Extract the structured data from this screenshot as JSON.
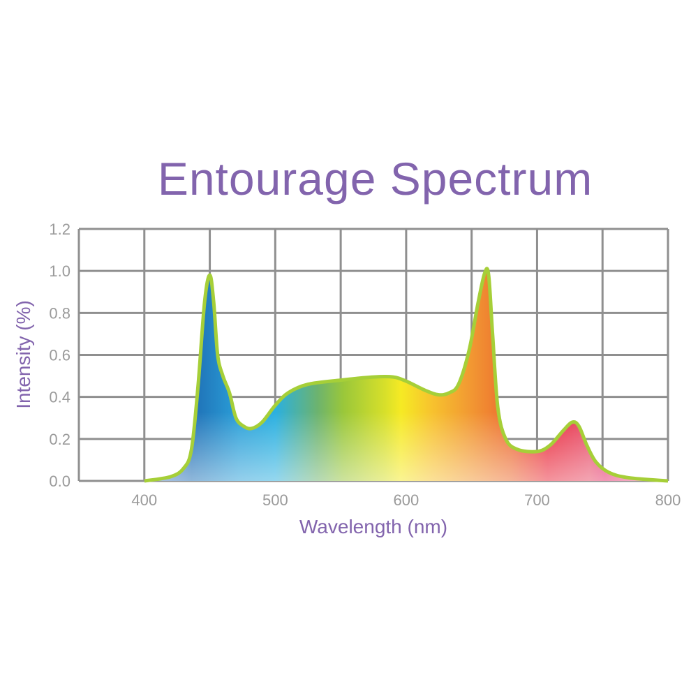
{
  "chart_data": {
    "type": "area",
    "title": "Entourage Spectrum",
    "xlabel": "Wavelength (nm)",
    "ylabel": "Intensity (%)",
    "xlim": [
      350,
      800
    ],
    "ylim": [
      0,
      1.2
    ],
    "grid": true,
    "x_grid_step": 50,
    "y_grid_step": 0.2,
    "x_ticks": [
      400,
      500,
      600,
      700,
      800
    ],
    "x_tick_labels": [
      "400",
      "500",
      "600",
      "700",
      "800"
    ],
    "y_ticks": [
      0,
      0.2,
      0.4,
      0.6,
      0.8,
      1.0,
      1.2
    ],
    "y_tick_labels": [
      "0.0",
      "0.2",
      "0.4",
      "0.6",
      "0.8",
      "1.0",
      "1.2"
    ],
    "series": [
      {
        "name": "Entourage",
        "x": [
          400,
          420,
          430,
          436,
          441,
          446,
          450,
          453,
          456,
          460,
          465,
          470,
          476,
          482,
          490,
          500,
          510,
          525,
          550,
          575,
          590,
          600,
          615,
          625,
          633,
          640,
          648,
          655,
          660,
          663,
          666,
          670,
          676,
          685,
          700,
          710,
          720,
          727,
          732,
          738,
          745,
          755,
          770,
          800
        ],
        "y": [
          0.0,
          0.02,
          0.06,
          0.15,
          0.45,
          0.85,
          0.98,
          0.85,
          0.6,
          0.5,
          0.42,
          0.3,
          0.26,
          0.25,
          0.28,
          0.36,
          0.42,
          0.46,
          0.48,
          0.495,
          0.495,
          0.475,
          0.43,
          0.41,
          0.42,
          0.46,
          0.62,
          0.85,
          0.99,
          0.98,
          0.7,
          0.35,
          0.2,
          0.15,
          0.14,
          0.17,
          0.24,
          0.28,
          0.26,
          0.17,
          0.09,
          0.04,
          0.015,
          0.0
        ]
      }
    ]
  },
  "colors": {
    "title": "#8264ad",
    "grid": "#8f8f8f",
    "outline": "#a6cf38"
  }
}
